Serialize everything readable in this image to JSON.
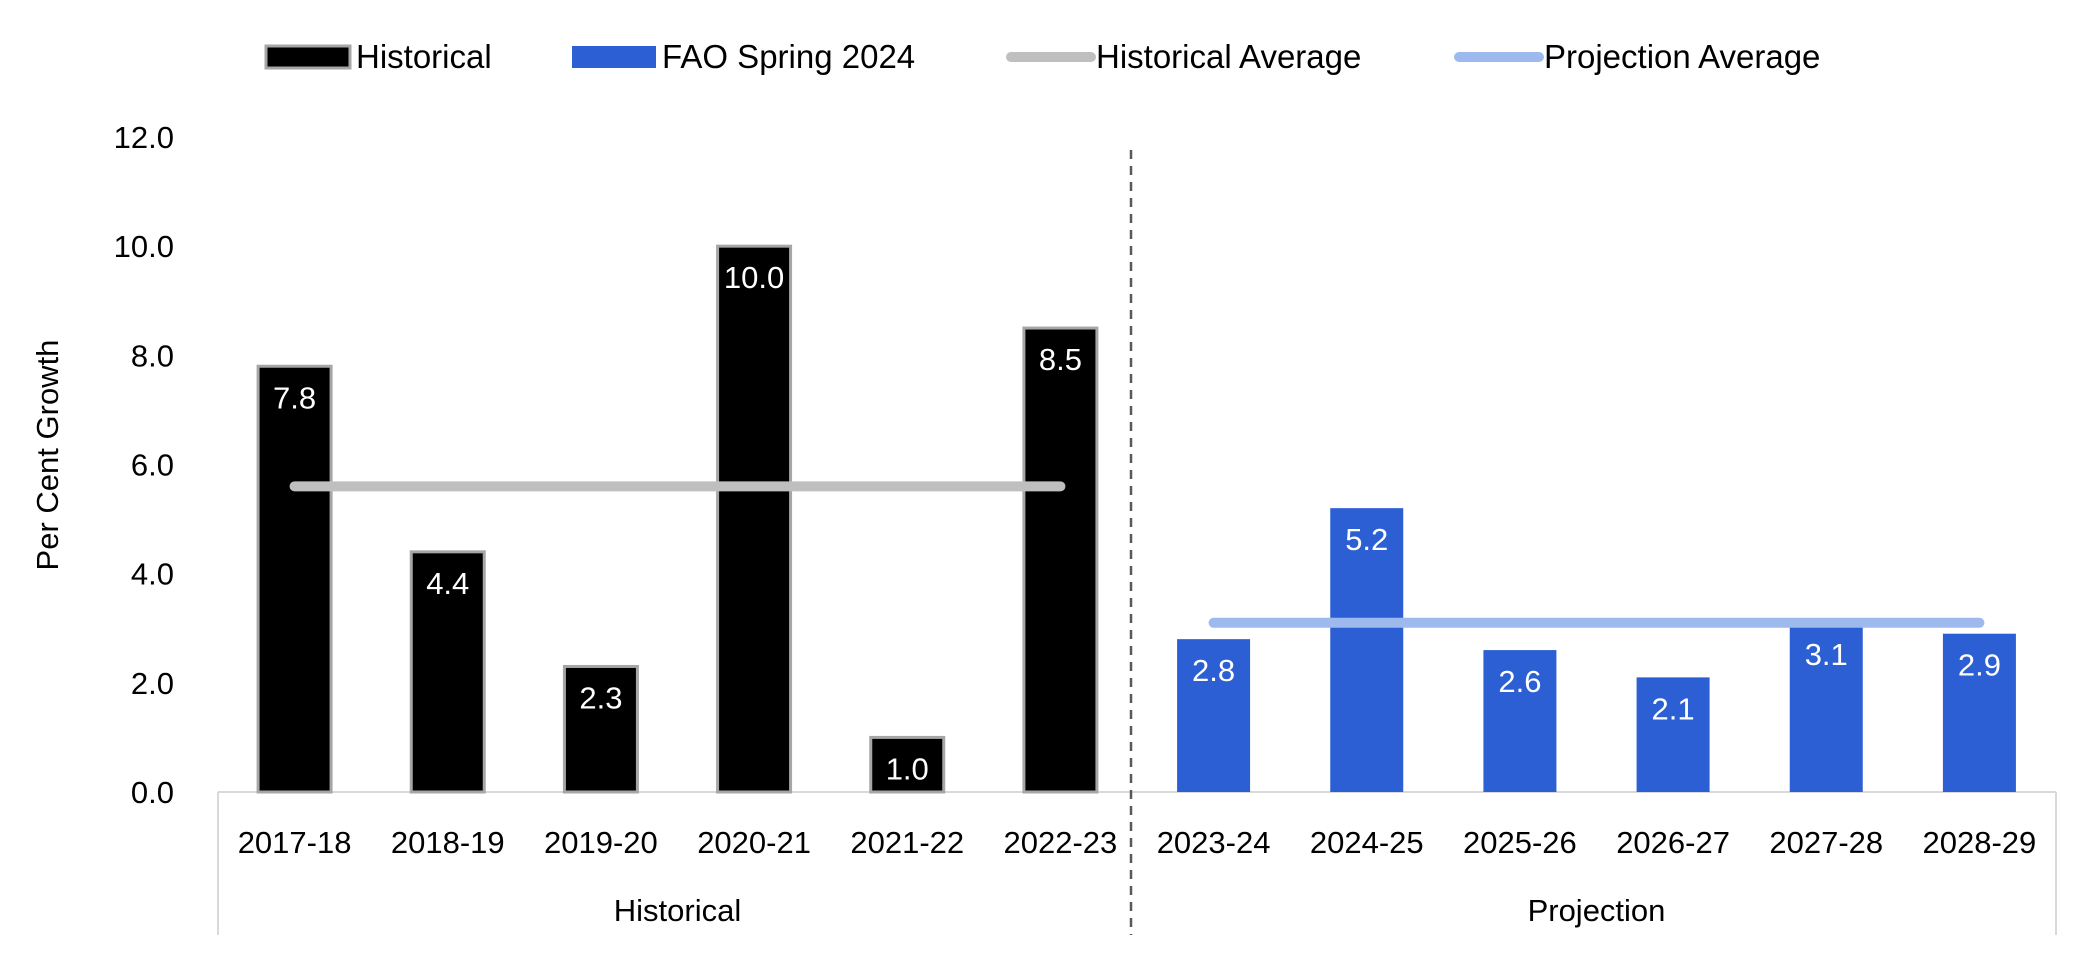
{
  "chart_data": {
    "type": "bar",
    "title": "",
    "xlabel": "",
    "ylabel": "Per Cent Growth",
    "ylim": [
      0,
      12
    ],
    "yticks": [
      "0.0",
      "2.0",
      "4.0",
      "6.0",
      "8.0",
      "10.0",
      "12.0"
    ],
    "grid": false,
    "legend_position": "top",
    "categories": [
      "2017-18",
      "2018-19",
      "2019-20",
      "2020-21",
      "2021-22",
      "2022-23",
      "2023-24",
      "2024-25",
      "2025-26",
      "2026-27",
      "2027-28",
      "2028-29"
    ],
    "series": [
      {
        "name": "Historical",
        "kind": "bar",
        "color": "#000000",
        "values": [
          7.8,
          4.4,
          2.3,
          10.0,
          1.0,
          8.5,
          null,
          null,
          null,
          null,
          null,
          null
        ],
        "labels": [
          "7.8",
          "4.4",
          "2.3",
          "10.0",
          "1.0",
          "8.5",
          "",
          "",
          "",
          "",
          "",
          ""
        ]
      },
      {
        "name": "FAO Spring 2024",
        "kind": "bar",
        "color": "#2B5FD3",
        "values": [
          null,
          null,
          null,
          null,
          null,
          null,
          2.8,
          5.2,
          2.6,
          2.1,
          3.1,
          2.9
        ],
        "labels": [
          "",
          "",
          "",
          "",
          "",
          "",
          "2.8",
          "5.2",
          "2.6",
          "2.1",
          "3.1",
          "2.9"
        ]
      },
      {
        "name": "Historical Average",
        "kind": "line",
        "color": "#BFBFBF",
        "value": 5.6,
        "from_category": "2017-18",
        "to_category": "2022-23"
      },
      {
        "name": "Projection Average",
        "kind": "line",
        "color": "#9EB9EE",
        "value": 3.1,
        "from_category": "2023-24",
        "to_category": "2028-29"
      }
    ],
    "groups": [
      {
        "label": "Historical",
        "from_index": 0,
        "to_index": 5
      },
      {
        "label": "Projection",
        "from_index": 6,
        "to_index": 11
      }
    ]
  }
}
